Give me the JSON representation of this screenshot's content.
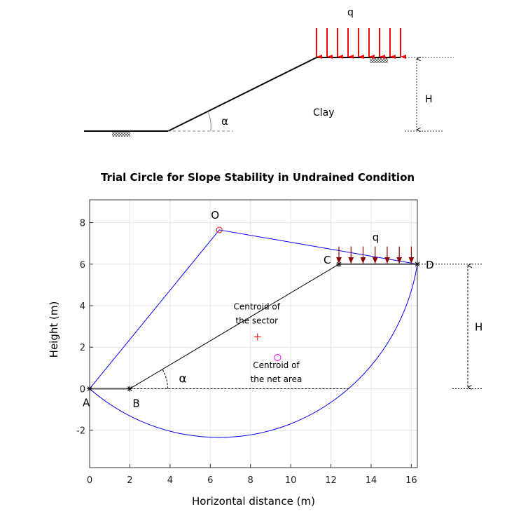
{
  "sketch": {
    "load_label": "q",
    "height_label": "H",
    "material_label": "Clay",
    "angle_label": "α",
    "load_color": "#ff0000"
  },
  "chart_data": {
    "type": "diagram-plot",
    "title": "Trial Circle for Slope Stability in Undrained Condition",
    "xlabel": "Horizontal distance (m)",
    "ylabel": "Height (m)",
    "xlim": [
      0,
      16.3
    ],
    "ylim": [
      -3.8,
      9.1
    ],
    "xticks": [
      0,
      2,
      4,
      6,
      8,
      10,
      12,
      14,
      16
    ],
    "yticks": [
      -2,
      0,
      2,
      4,
      6,
      8
    ],
    "grid": true,
    "points": {
      "A": {
        "label": "A",
        "x": 0,
        "y": 0
      },
      "B": {
        "label": "B",
        "x": 2,
        "y": 0
      },
      "C": {
        "label": "C",
        "x": 12.4,
        "y": 6
      },
      "D": {
        "label": "D",
        "x": 16.3,
        "y": 6
      },
      "O": {
        "label": "O",
        "x": 6.45,
        "y": 7.65
      }
    },
    "radius": 10,
    "sector_centroid": {
      "label": "Centroid of the sector",
      "line1": "Centroid of",
      "line2": "the sector",
      "x": 8.35,
      "y": 2.5
    },
    "net_centroid": {
      "label": "Centroid of the net area",
      "line1": "Centroid of",
      "line2": "the net area",
      "x": 9.35,
      "y": 1.5
    },
    "load_x": [
      12.4,
      13.0,
      13.6,
      14.2,
      14.8,
      15.4,
      16.0
    ],
    "load_label": "q",
    "height_label": "H",
    "angle_label": "α",
    "colors": {
      "circle": "#0000ff",
      "slope": "#000000",
      "load": "#8b0000",
      "centre": "#ff0000",
      "net_centroid": "#ff00ff",
      "sector_centroid": "#ff0000"
    }
  }
}
